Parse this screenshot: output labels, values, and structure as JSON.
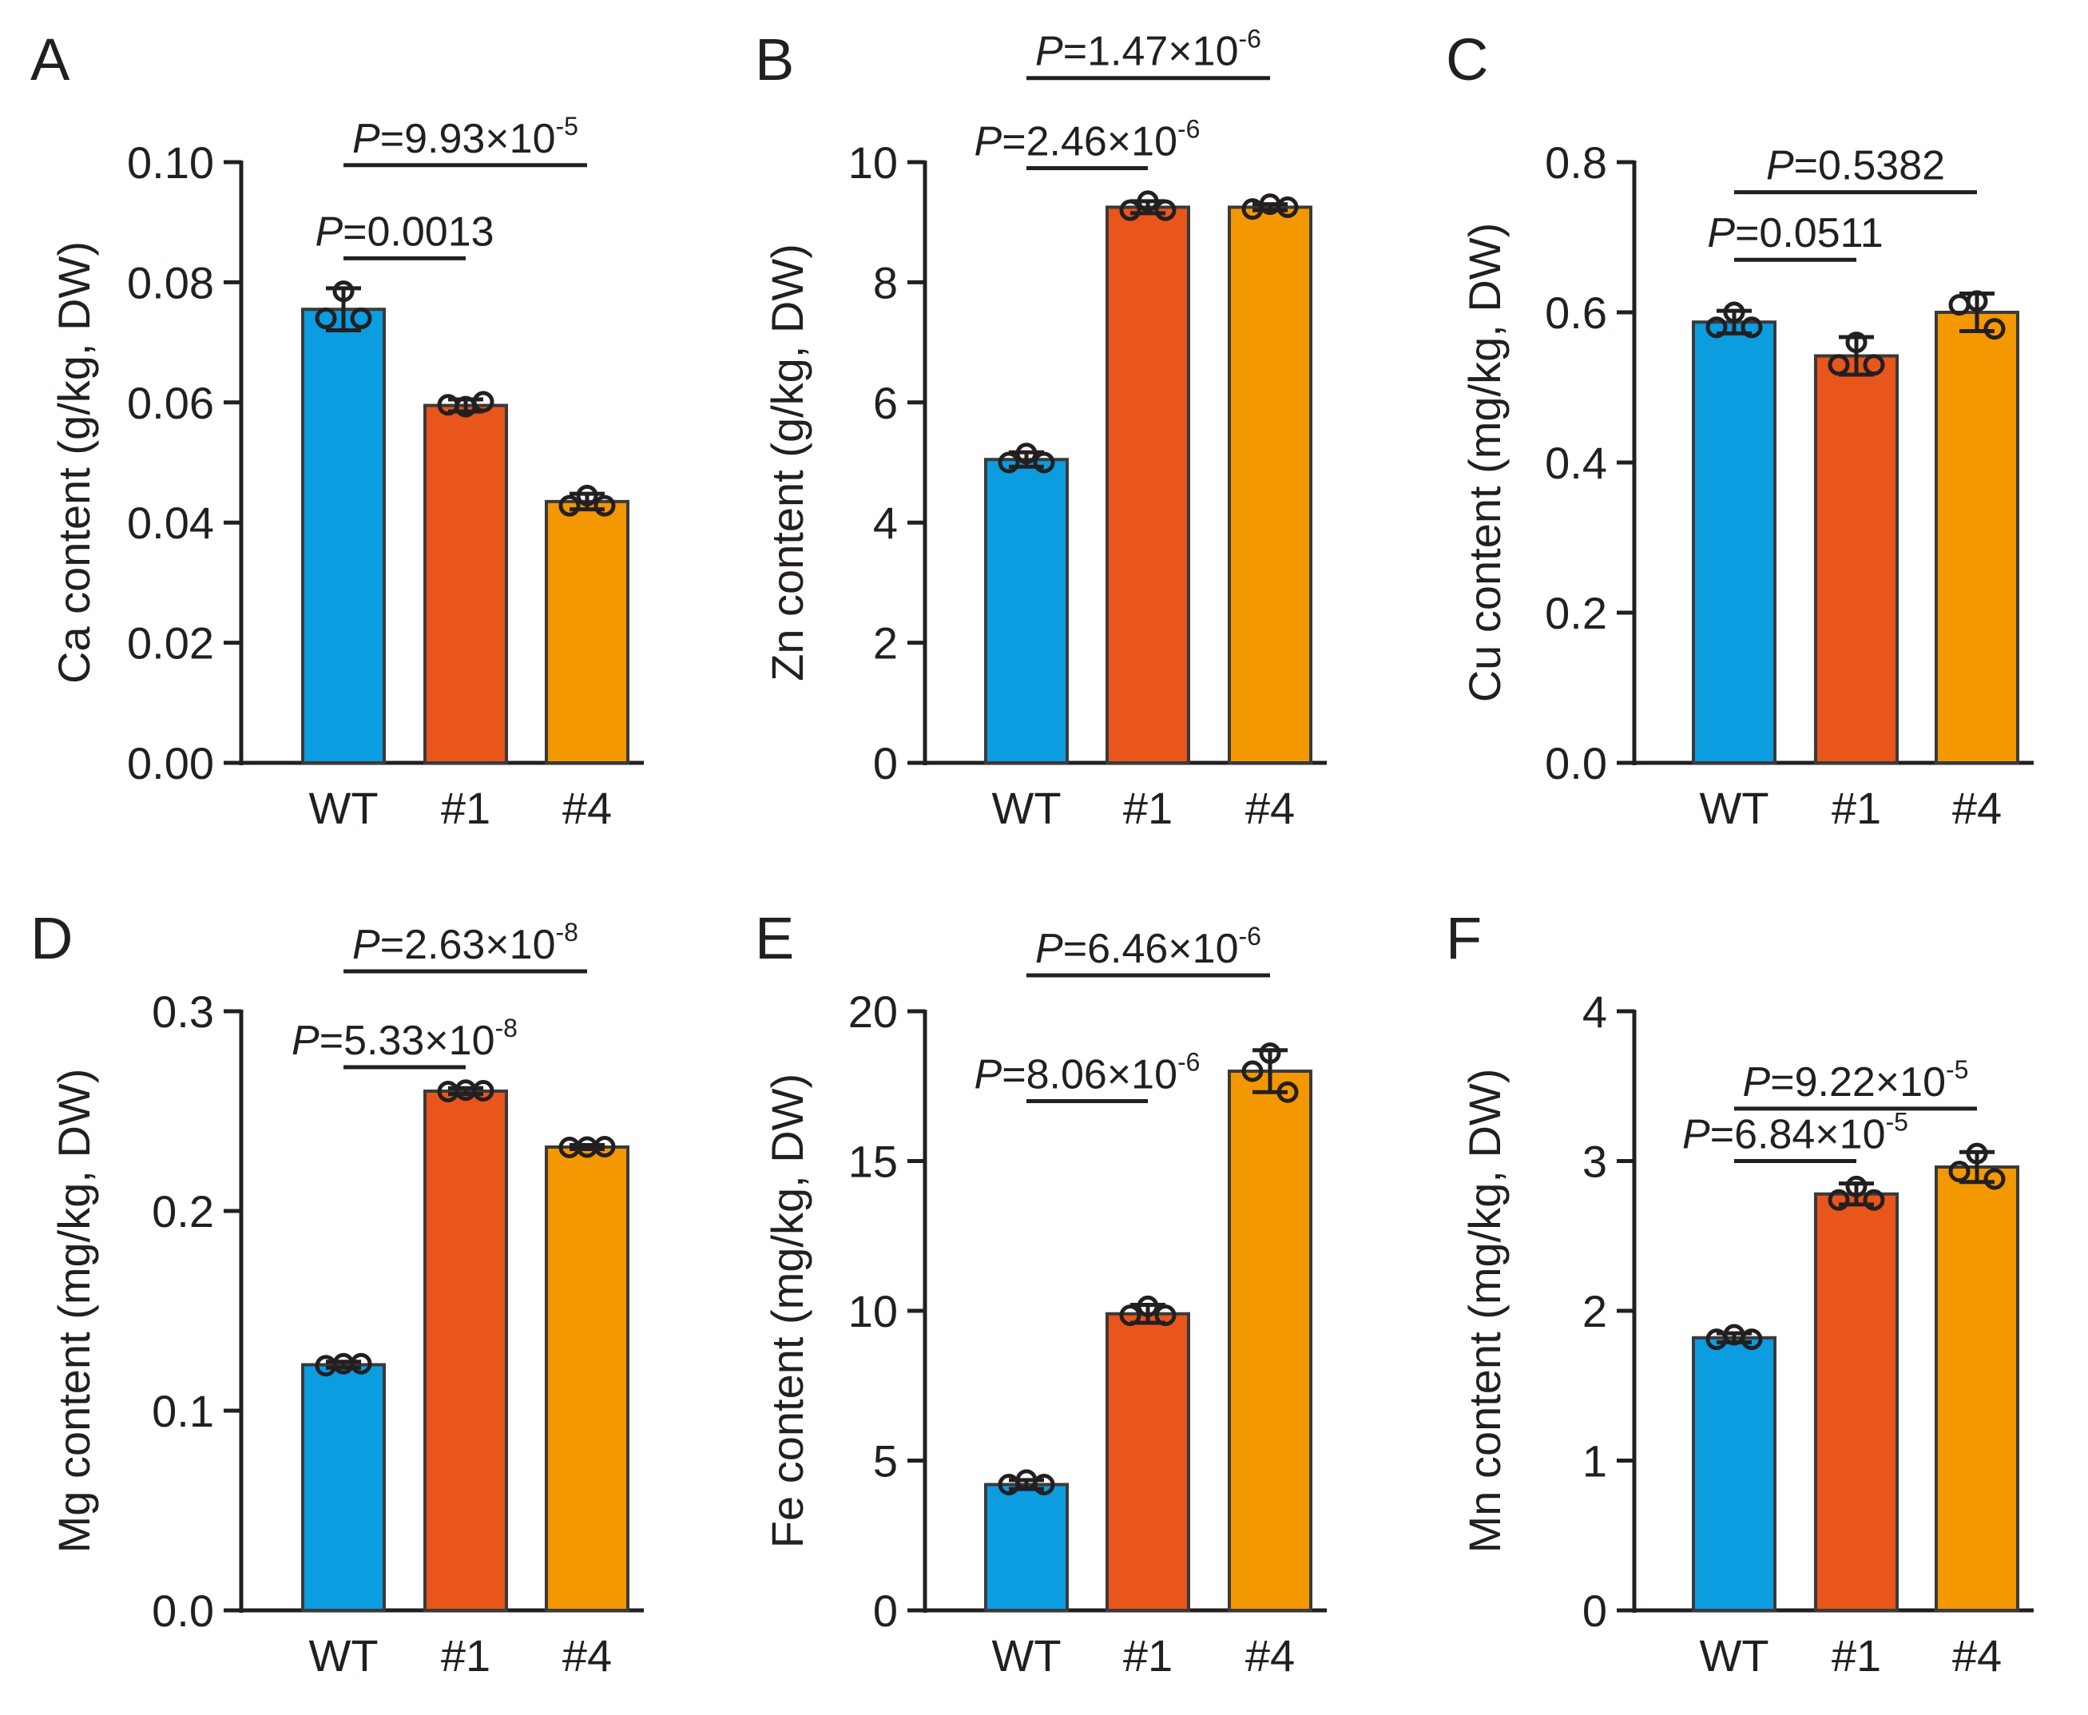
{
  "colors": {
    "WT": "#0C9CE0",
    "#1": "#E8561C",
    "#4": "#F39800",
    "ink": "#231f20",
    "bar_stroke": "#3a3a3a"
  },
  "chart_data": [
    {
      "panel": "A",
      "type": "bar",
      "ylabel": "Ca content (g/kg, DW)",
      "categories": [
        "WT",
        "#1",
        "#4"
      ],
      "values": [
        0.0755,
        0.0595,
        0.0435
      ],
      "sd": [
        0.0035,
        0.001,
        0.0013
      ],
      "points": [
        [
          0.0785,
          0.074,
          0.074
        ],
        [
          0.0593,
          0.0596,
          0.0601
        ],
        [
          0.0445,
          0.0428,
          0.0428
        ]
      ],
      "ylim": [
        0,
        0.1
      ],
      "yticks": [
        "0.00",
        "0.02",
        "0.04",
        "0.06",
        "0.08",
        "0.10"
      ],
      "ytick_values": [
        0,
        0.02,
        0.04,
        0.06,
        0.08,
        0.1
      ],
      "comparisons": [
        {
          "from": 0,
          "to": 1,
          "level": 0.084,
          "P": "P",
          "text": "=0.0013",
          "sup": ""
        },
        {
          "from": 0,
          "to": 2,
          "level": 0.0995,
          "P": "P",
          "text": "=9.93×10",
          "sup": "-5"
        }
      ]
    },
    {
      "panel": "B",
      "type": "bar",
      "ylabel": "Zn content (g/kg, DW)",
      "categories": [
        "WT",
        "#1",
        "#4"
      ],
      "values": [
        5.05,
        9.25,
        9.25
      ],
      "sd": [
        0.12,
        0.1,
        0.05
      ],
      "points": [
        [
          5.15,
          5.0,
          5.0
        ],
        [
          9.35,
          9.2,
          9.2
        ],
        [
          9.3,
          9.22,
          9.25
        ]
      ],
      "ylim": [
        0,
        10
      ],
      "yticks": [
        "0",
        "2",
        "4",
        "6",
        "8",
        "10"
      ],
      "ytick_values": [
        0,
        2,
        4,
        6,
        8,
        10
      ],
      "comparisons": [
        {
          "from": 0,
          "to": 1,
          "level": 9.9,
          "P": "P",
          "text": "=2.46×10",
          "sup": "-6"
        },
        {
          "from": 0,
          "to": 2,
          "level": 11.4,
          "P": "P",
          "text": "=1.47×10",
          "sup": "-6"
        }
      ]
    },
    {
      "panel": "C",
      "type": "bar",
      "ylabel": "Cu content (mg/kg, DW)",
      "categories": [
        "WT",
        "#1",
        "#4"
      ],
      "values": [
        0.587,
        0.542,
        0.6
      ],
      "sd": [
        0.015,
        0.025,
        0.025
      ],
      "points": [
        [
          0.6,
          0.58,
          0.58
        ],
        [
          0.56,
          0.53,
          0.53
        ],
        [
          0.615,
          0.61,
          0.578
        ]
      ],
      "ylim": [
        0,
        0.8
      ],
      "yticks": [
        "0.0",
        "0.2",
        "0.4",
        "0.6",
        "0.8"
      ],
      "ytick_values": [
        0,
        0.2,
        0.4,
        0.6,
        0.8
      ],
      "comparisons": [
        {
          "from": 0,
          "to": 1,
          "level": 0.67,
          "P": "P",
          "text": "=0.0511",
          "sup": ""
        },
        {
          "from": 0,
          "to": 2,
          "level": 0.76,
          "P": "P",
          "text": "=0.5382",
          "sup": ""
        }
      ]
    },
    {
      "panel": "D",
      "type": "bar",
      "ylabel": "Mg content (mg/kg, DW)",
      "categories": [
        "WT",
        "#1",
        "#4"
      ],
      "values": [
        0.123,
        0.26,
        0.232
      ],
      "sd": [
        0.0015,
        0.0015,
        0.001
      ],
      "points": [
        [
          0.1235,
          0.1225,
          0.1235
        ],
        [
          0.2605,
          0.2598,
          0.2602
        ],
        [
          0.232,
          0.2318,
          0.2322
        ]
      ],
      "ylim": [
        0,
        0.3
      ],
      "yticks": [
        "0.0",
        "0.1",
        "0.2",
        "0.3"
      ],
      "ytick_values": [
        0,
        0.1,
        0.2,
        0.3
      ],
      "comparisons": [
        {
          "from": 0,
          "to": 1,
          "level": 0.272,
          "P": "P",
          "text": "=5.33×10",
          "sup": "-8"
        },
        {
          "from": 0,
          "to": 2,
          "level": 0.32,
          "P": "P",
          "text": "=2.63×10",
          "sup": "-8"
        }
      ]
    },
    {
      "panel": "E",
      "type": "bar",
      "ylabel": "Fe content (mg/kg, DW)",
      "categories": [
        "WT",
        "#1",
        "#4"
      ],
      "values": [
        4.2,
        9.9,
        18.0
      ],
      "sd": [
        0.15,
        0.3,
        0.7
      ],
      "points": [
        [
          4.35,
          4.2,
          4.2
        ],
        [
          10.15,
          9.85,
          9.85
        ],
        [
          18.6,
          18.0,
          17.3
        ]
      ],
      "ylim": [
        0,
        20
      ],
      "yticks": [
        "0",
        "5",
        "10",
        "15",
        "20"
      ],
      "ytick_values": [
        0,
        5,
        10,
        15,
        20
      ],
      "comparisons": [
        {
          "from": 0,
          "to": 1,
          "level": 17.0,
          "P": "P",
          "text": "=8.06×10",
          "sup": "-6"
        },
        {
          "from": 0,
          "to": 2,
          "level": 21.2,
          "P": "P",
          "text": "=6.46×10",
          "sup": "-6"
        }
      ]
    },
    {
      "panel": "F",
      "type": "bar",
      "ylabel": "Mn content (mg/kg, DW)",
      "categories": [
        "WT",
        "#1",
        "#4"
      ],
      "values": [
        1.82,
        2.78,
        2.96
      ],
      "sd": [
        0.03,
        0.07,
        0.1
      ],
      "points": [
        [
          1.84,
          1.81,
          1.81
        ],
        [
          2.83,
          2.74,
          2.74
        ],
        [
          3.05,
          2.93,
          2.88
        ]
      ],
      "ylim": [
        0,
        4
      ],
      "yticks": [
        "0",
        "1",
        "2",
        "3",
        "4"
      ],
      "ytick_values": [
        0,
        1,
        2,
        3,
        4
      ],
      "comparisons": [
        {
          "from": 0,
          "to": 1,
          "level": 3.0,
          "P": "P",
          "text": "=6.84×10",
          "sup": "-5"
        },
        {
          "from": 0,
          "to": 2,
          "level": 3.35,
          "P": "P",
          "text": "=9.22×10",
          "sup": "-5"
        }
      ]
    }
  ]
}
